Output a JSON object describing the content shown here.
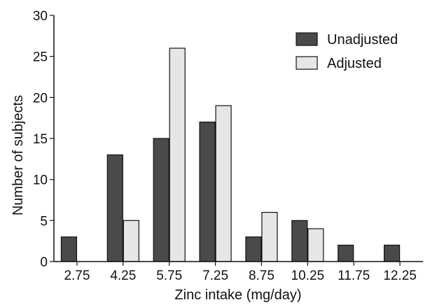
{
  "chart_data": {
    "type": "bar",
    "title": "",
    "xlabel": "Zinc intake (mg/day)",
    "ylabel": "Number of subjects",
    "categories": [
      "2.75",
      "4.25",
      "5.75",
      "7.25",
      "8.75",
      "10.25",
      "11.75",
      "12.25"
    ],
    "series": [
      {
        "name": "Unadjusted",
        "color": "#4a4a4a",
        "values": [
          3,
          13,
          15,
          17,
          3,
          5,
          2,
          2
        ]
      },
      {
        "name": "Adjusted",
        "color": "#e6e6e6",
        "values": [
          0,
          5,
          26,
          19,
          6,
          4,
          0,
          0
        ]
      }
    ],
    "ylim": [
      0,
      30
    ],
    "yticks": [
      0,
      5,
      10,
      15,
      20,
      25,
      30
    ],
    "grid": false,
    "legend_position": "top-right"
  }
}
